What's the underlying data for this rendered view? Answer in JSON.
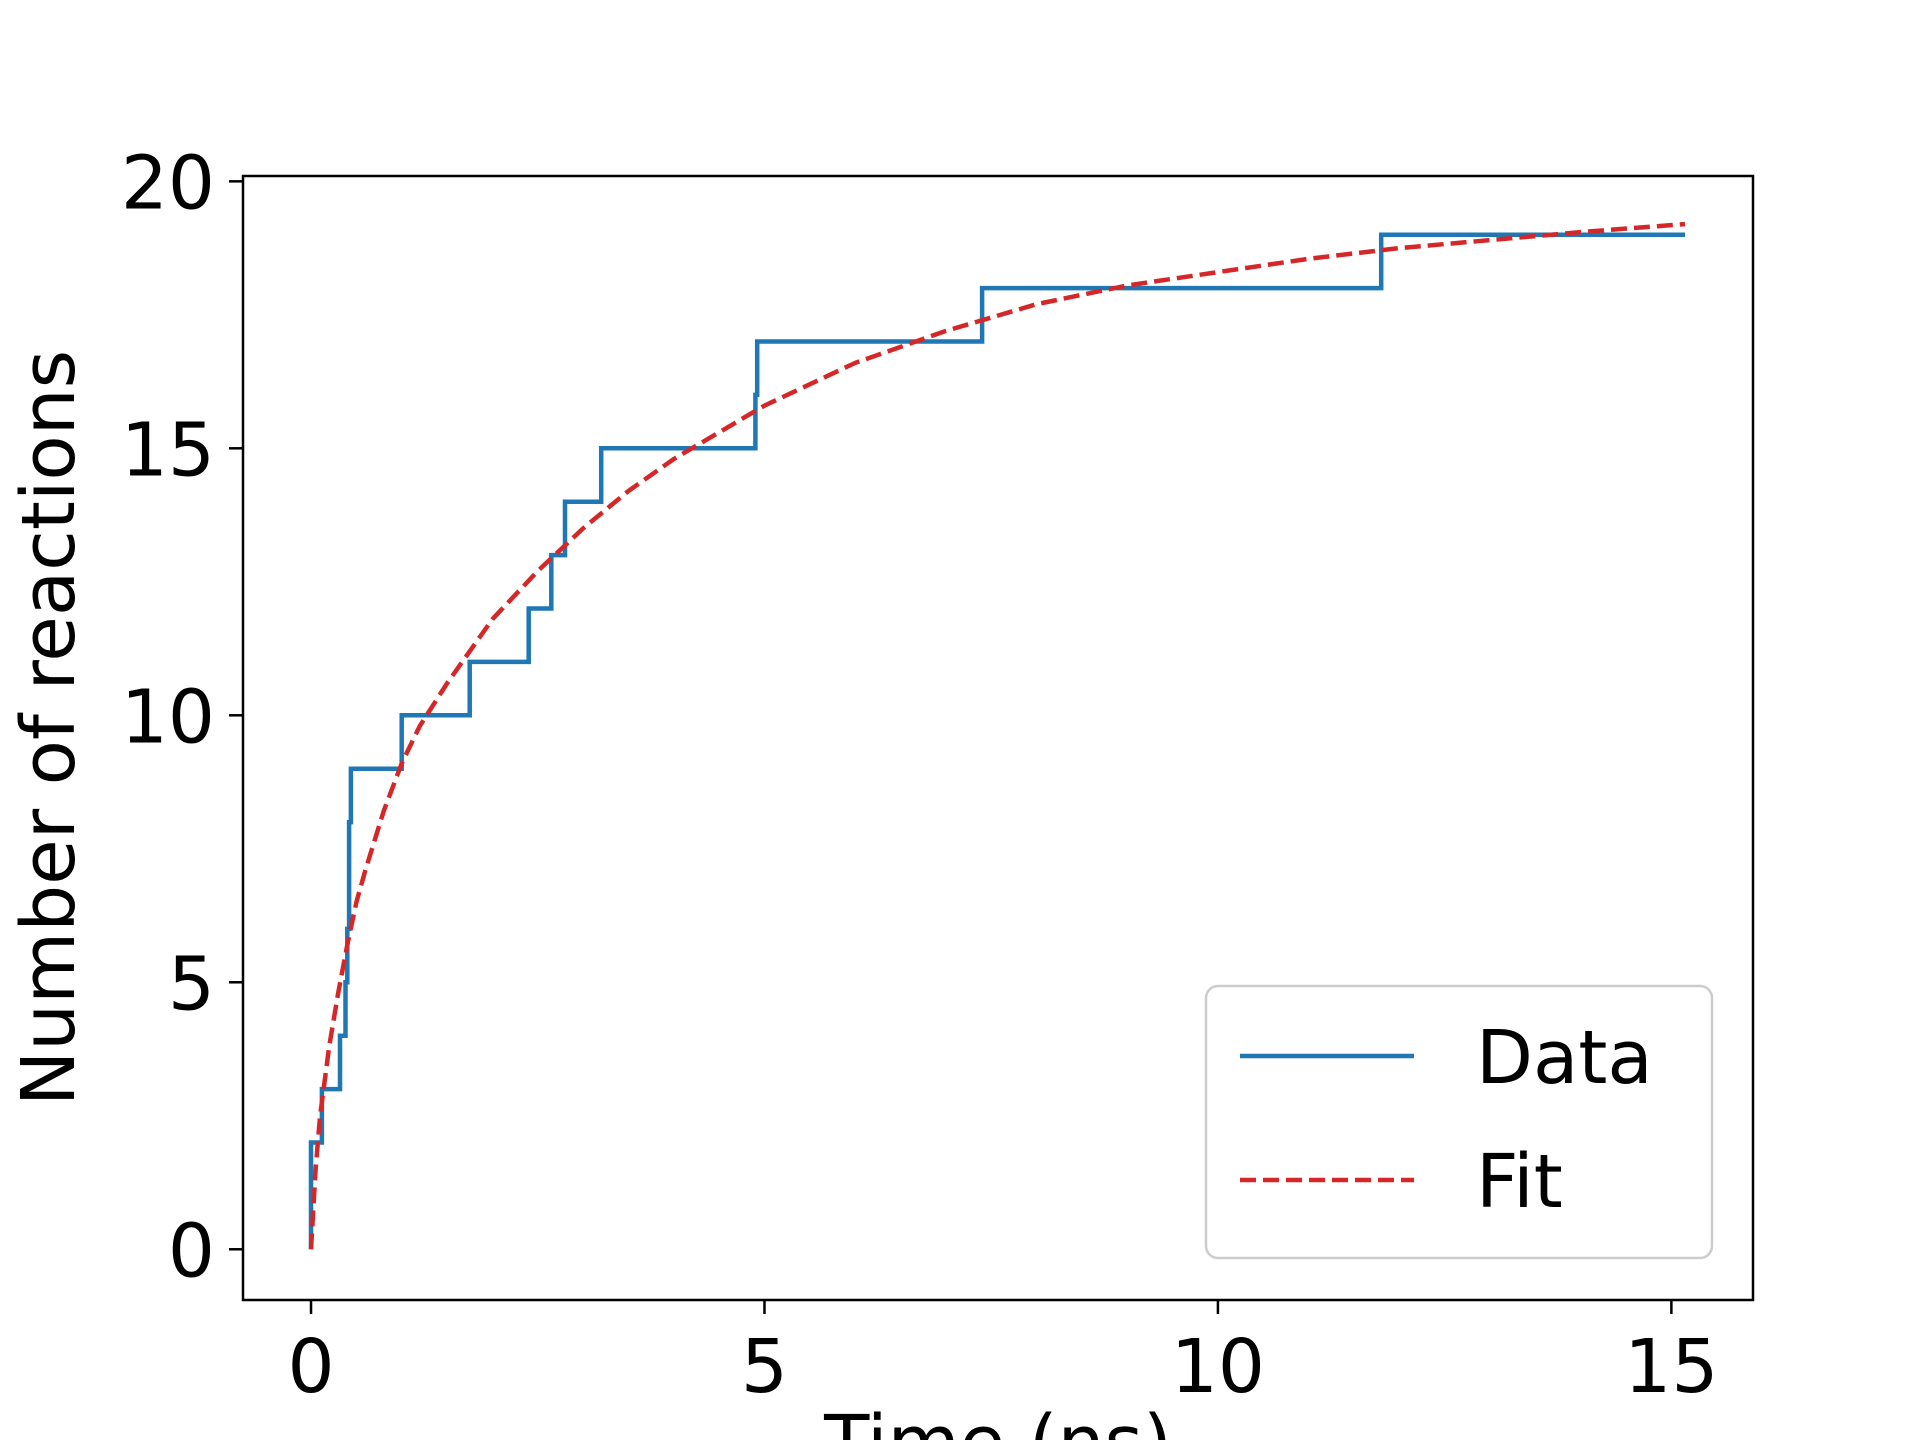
{
  "chart_data": {
    "type": "line",
    "xlabel": "Time (ns)",
    "ylabel": "Number of reactions",
    "xlim": [
      -0.75,
      15.9
    ],
    "ylim": [
      -0.95,
      20.1
    ],
    "xticks": [
      0,
      5,
      10,
      15
    ],
    "yticks": [
      0,
      5,
      10,
      15,
      20
    ],
    "grid": false,
    "legend_position": "lower-right",
    "series": [
      {
        "name": "Data",
        "style": "step",
        "color": "#1f77b4",
        "x": [
          0.0,
          0.0,
          0.1,
          0.12,
          0.3,
          0.32,
          0.38,
          0.4,
          0.42,
          0.44,
          1.0,
          1.75,
          2.4,
          2.65,
          2.8,
          3.2,
          4.9,
          4.92,
          7.4,
          11.8,
          15.15
        ],
        "y": [
          0,
          2,
          2,
          3,
          3,
          4,
          5,
          6,
          8,
          9,
          10,
          11,
          12,
          13,
          14,
          15,
          16,
          17,
          18,
          19,
          19
        ]
      },
      {
        "name": "Fit",
        "style": "dashed",
        "color": "#d62728",
        "x": [
          0.0,
          0.05,
          0.1,
          0.2,
          0.3,
          0.4,
          0.5,
          0.6,
          0.8,
          1.0,
          1.2,
          1.5,
          2.0,
          2.5,
          3.0,
          3.5,
          4.0,
          5.0,
          6.0,
          7.0,
          8.0,
          9.0,
          10.0,
          11.0,
          12.0,
          13.0,
          14.0,
          15.15
        ],
        "y": [
          0,
          1.5,
          2.5,
          3.8,
          4.8,
          5.7,
          6.5,
          7.1,
          8.2,
          9.1,
          9.8,
          10.6,
          11.8,
          12.7,
          13.5,
          14.2,
          14.8,
          15.8,
          16.6,
          17.2,
          17.7,
          18.05,
          18.3,
          18.55,
          18.75,
          18.9,
          19.05,
          19.2
        ]
      }
    ]
  }
}
